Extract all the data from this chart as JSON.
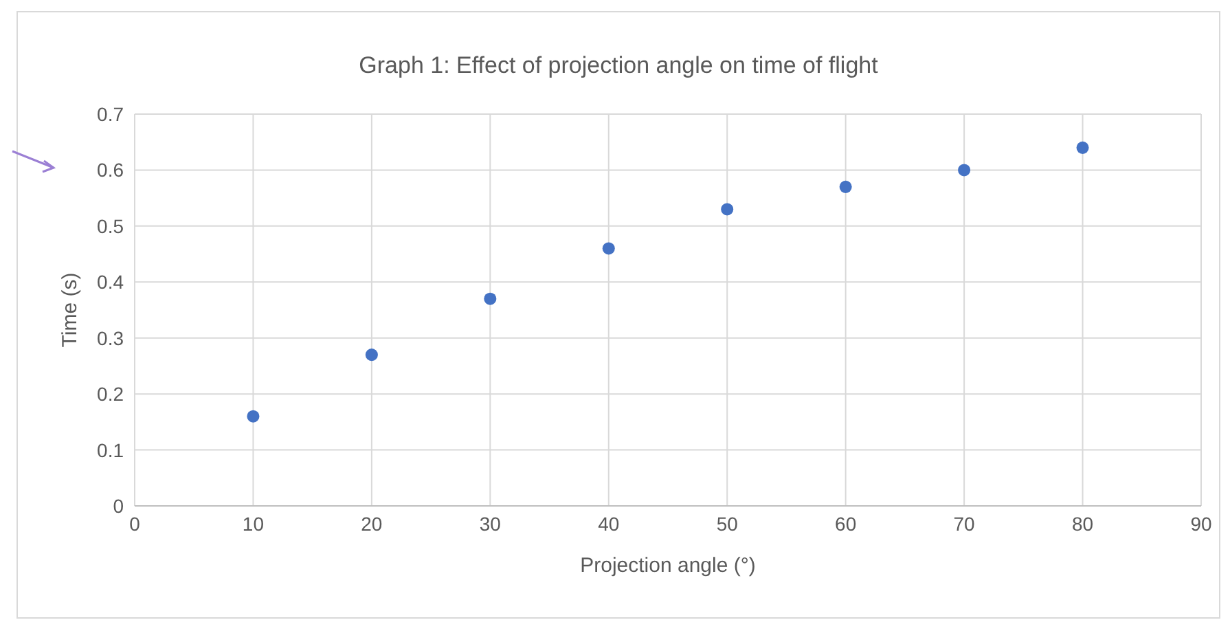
{
  "chart_data": {
    "type": "scatter",
    "title": "Graph 1: Effect of projection angle on time of flight",
    "xlabel": "Projection angle (°)",
    "ylabel": "Time (s)",
    "x": [
      10,
      20,
      30,
      40,
      50,
      60,
      70,
      80
    ],
    "series": [
      {
        "color": "#4472c4",
        "values": [
          0.16,
          0.27,
          0.37,
          0.46,
          0.53,
          0.57,
          0.6,
          0.64
        ]
      }
    ],
    "xlim": [
      0,
      90
    ],
    "xticks": [
      0,
      10,
      20,
      30,
      40,
      50,
      60,
      70,
      80,
      90
    ],
    "ylim": [
      0,
      0.7
    ],
    "yticks": [
      0,
      0.1,
      0.2,
      0.3,
      0.4,
      0.5,
      0.6,
      0.7
    ],
    "grid": true,
    "legend": false,
    "marker": "circle"
  }
}
